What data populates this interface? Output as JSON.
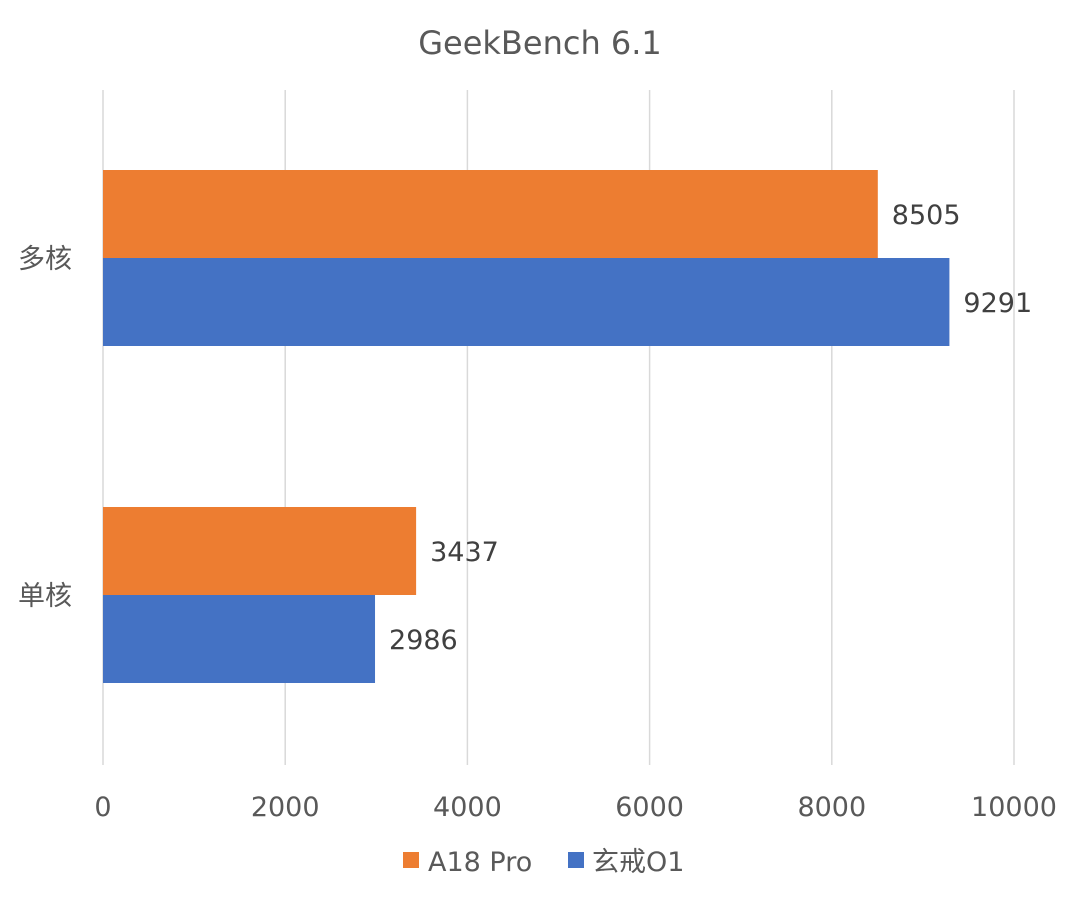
{
  "chart_data": {
    "type": "bar",
    "orientation": "horizontal",
    "title": "GeekBench 6.1",
    "categories": [
      "多核",
      "单核"
    ],
    "series": [
      {
        "name": "A18 Pro",
        "color": "#ED7D31",
        "values": [
          8505,
          3437
        ]
      },
      {
        "name": "玄戒O1",
        "color": "#4472C4",
        "values": [
          9291,
          2986
        ]
      }
    ],
    "xlim": [
      0,
      10000
    ],
    "xticks": [
      "0",
      "2000",
      "4000",
      "6000",
      "8000",
      "10000"
    ],
    "grid": true,
    "legend_position": "bottom",
    "data_labels": [
      "8505",
      "9291",
      "3437",
      "2986"
    ]
  }
}
